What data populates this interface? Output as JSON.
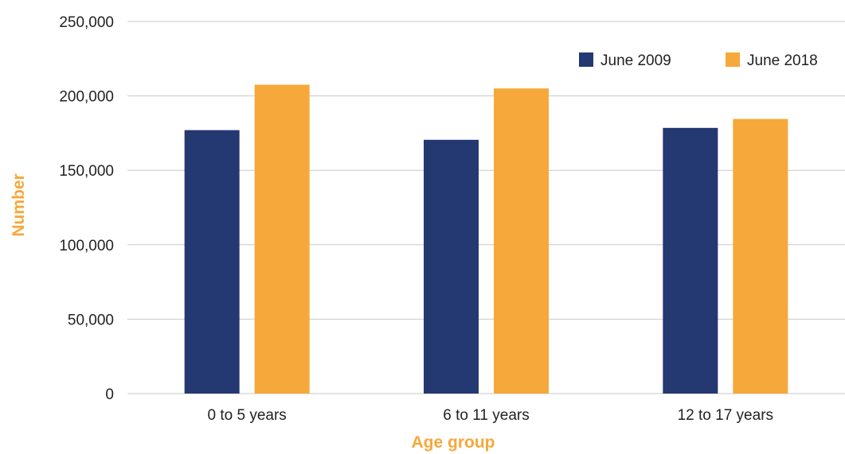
{
  "chart_data": {
    "type": "bar",
    "title": "",
    "xlabel": "Age group",
    "ylabel": "Number",
    "categories": [
      "0 to 5 years",
      "6 to 11 years",
      "12 to 17 years"
    ],
    "series": [
      {
        "name": "June 2009",
        "color": "#243872",
        "values": [
          177000,
          170500,
          178500
        ]
      },
      {
        "name": "June 2018",
        "color": "#F6A83A",
        "values": [
          207500,
          205000,
          184500
        ]
      }
    ],
    "ylim": [
      0,
      250000
    ],
    "yticks": [
      0,
      50000,
      100000,
      150000,
      200000,
      250000
    ],
    "ytick_labels": [
      "0",
      "50,000",
      "100,000",
      "150,000",
      "200,000",
      "250,000"
    ],
    "grid": true,
    "legend_position": "top-right",
    "axis_title_color": "#F6A83A",
    "gridline_color": "#C8C8C8"
  }
}
